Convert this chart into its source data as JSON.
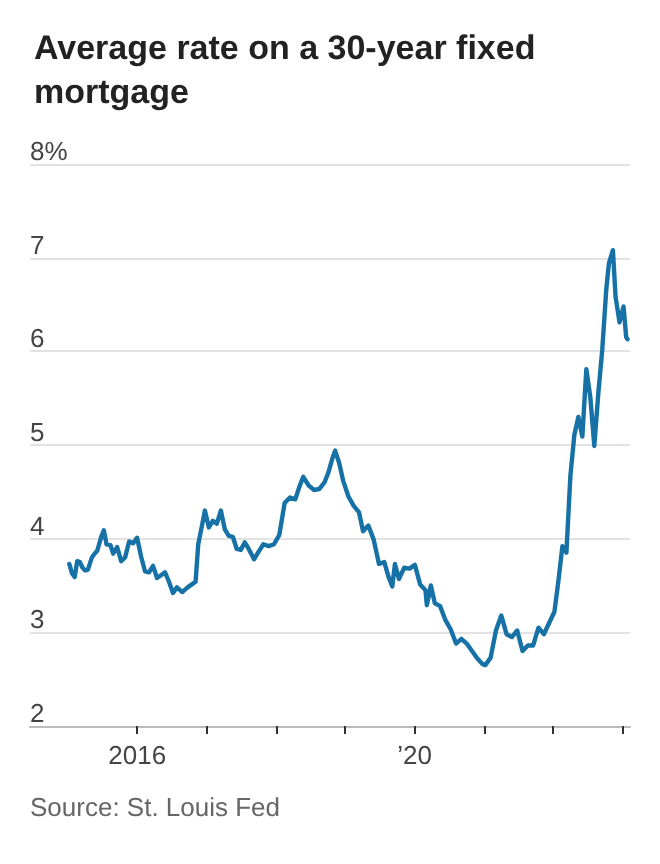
{
  "chart_data": {
    "type": "line",
    "title": "Average rate on a 30-year fixed mortgage",
    "annotations": [
      "Source: St. Louis Fed"
    ],
    "xlim": [
      "2014-06-15",
      "2023-02-08"
    ],
    "xticks": [
      {
        "value": "2016",
        "label": "2016"
      },
      {
        "value": "2017",
        "label": null
      },
      {
        "value": "2018",
        "label": null
      },
      {
        "value": "2019",
        "label": null
      },
      {
        "value": "2020",
        "label": "’20"
      },
      {
        "value": "2021",
        "label": null
      },
      {
        "value": "2022",
        "label": null
      },
      {
        "value": "2023",
        "label": null
      }
    ],
    "ylim": [
      2,
      8
    ],
    "yticks": [
      2,
      3,
      4,
      5,
      6,
      {
        "value": 7,
        "label": "7"
      },
      {
        "value": 8,
        "label": "8%"
      }
    ],
    "grid": "y",
    "marker": "none",
    "line_style": "solid",
    "series": [
      {
        "color": "#1672a6",
        "x": [
          "2015-01-08",
          "2015-01-22",
          "2015-02-05",
          "2015-02-19",
          "2015-03-05",
          "2015-03-19",
          "2015-04-02",
          "2015-04-16",
          "2015-05-07",
          "2015-05-21",
          "2015-06-04",
          "2015-06-25",
          "2015-07-09",
          "2015-07-23",
          "2015-08-13",
          "2015-08-27",
          "2015-09-17",
          "2015-10-08",
          "2015-10-29",
          "2015-11-19",
          "2015-12-10",
          "2015-12-31",
          "2016-01-21",
          "2016-02-11",
          "2016-03-03",
          "2016-03-24",
          "2016-04-14",
          "2016-05-05",
          "2016-05-26",
          "2016-06-16",
          "2016-07-07",
          "2016-07-28",
          "2016-08-25",
          "2016-09-22",
          "2016-10-20",
          "2016-11-03",
          "2016-11-17",
          "2016-12-01",
          "2016-12-22",
          "2017-01-12",
          "2017-02-02",
          "2017-02-23",
          "2017-03-16",
          "2017-04-06",
          "2017-04-27",
          "2017-05-18",
          "2017-06-08",
          "2017-06-29",
          "2017-07-20",
          "2017-08-10",
          "2017-09-07",
          "2017-09-28",
          "2017-10-26",
          "2017-11-23",
          "2017-12-21",
          "2018-01-18",
          "2018-02-15",
          "2018-03-15",
          "2018-04-12",
          "2018-05-03",
          "2018-05-24",
          "2018-06-21",
          "2018-07-19",
          "2018-08-16",
          "2018-09-13",
          "2018-10-04",
          "2018-10-25",
          "2018-11-08",
          "2018-11-29",
          "2018-12-20",
          "2019-01-17",
          "2019-02-14",
          "2019-03-14",
          "2019-04-04",
          "2019-05-02",
          "2019-05-30",
          "2019-06-27",
          "2019-07-25",
          "2019-08-15",
          "2019-09-05",
          "2019-09-19",
          "2019-10-10",
          "2019-11-07",
          "2019-12-05",
          "2020-01-02",
          "2020-01-30",
          "2020-02-27",
          "2020-03-05",
          "2020-03-26",
          "2020-04-16",
          "2020-05-14",
          "2020-06-11",
          "2020-07-09",
          "2020-08-06",
          "2020-09-03",
          "2020-10-01",
          "2020-10-29",
          "2020-11-26",
          "2020-12-24",
          "2021-01-07",
          "2021-02-04",
          "2021-03-04",
          "2021-04-01",
          "2021-04-29",
          "2021-05-27",
          "2021-06-24",
          "2021-07-22",
          "2021-08-19",
          "2021-09-16",
          "2021-10-14",
          "2021-11-11",
          "2021-12-09",
          "2022-01-06",
          "2022-01-27",
          "2022-02-17",
          "2022-03-10",
          "2022-03-31",
          "2022-04-21",
          "2022-05-12",
          "2022-06-02",
          "2022-06-23",
          "2022-07-14",
          "2022-08-04",
          "2022-08-25",
          "2022-09-15",
          "2022-10-06",
          "2022-10-20",
          "2022-11-10",
          "2022-11-24",
          "2022-12-15",
          "2023-01-05",
          "2023-01-19",
          "2023-01-26"
        ],
        "values": [
          3.73,
          3.63,
          3.59,
          3.76,
          3.75,
          3.69,
          3.66,
          3.67,
          3.8,
          3.84,
          3.87,
          4.02,
          4.09,
          3.94,
          3.93,
          3.84,
          3.91,
          3.76,
          3.8,
          3.97,
          3.95,
          4.01,
          3.81,
          3.65,
          3.64,
          3.71,
          3.58,
          3.61,
          3.64,
          3.54,
          3.42,
          3.48,
          3.43,
          3.48,
          3.52,
          3.54,
          3.94,
          4.08,
          4.3,
          4.12,
          4.19,
          4.16,
          4.3,
          4.1,
          4.03,
          4.02,
          3.89,
          3.88,
          3.96,
          3.89,
          3.78,
          3.85,
          3.94,
          3.92,
          3.94,
          4.04,
          4.38,
          4.44,
          4.42,
          4.55,
          4.66,
          4.57,
          4.52,
          4.53,
          4.6,
          4.71,
          4.86,
          4.94,
          4.81,
          4.62,
          4.45,
          4.35,
          4.28,
          4.08,
          4.14,
          3.99,
          3.73,
          3.75,
          3.6,
          3.49,
          3.73,
          3.57,
          3.69,
          3.68,
          3.72,
          3.51,
          3.45,
          3.29,
          3.5,
          3.31,
          3.28,
          3.13,
          3.03,
          2.88,
          2.93,
          2.88,
          2.8,
          2.72,
          2.66,
          2.65,
          2.73,
          3.02,
          3.18,
          2.98,
          2.95,
          3.02,
          2.8,
          2.86,
          2.86,
          3.05,
          2.98,
          3.1,
          3.22,
          3.55,
          3.92,
          3.85,
          4.67,
          5.11,
          5.3,
          5.09,
          5.81,
          5.51,
          4.99,
          5.55,
          6.02,
          6.66,
          6.94,
          7.08,
          6.58,
          6.31,
          6.48,
          6.15,
          6.13
        ]
      }
    ]
  }
}
